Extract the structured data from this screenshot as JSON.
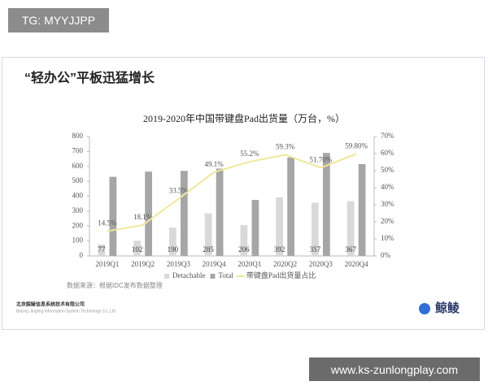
{
  "badge_top": "TG: MYYJJPP",
  "badge_bottom": "www.ks-zunlongplay.com",
  "heading": "“轻办公”平板迅猛增长",
  "source": "数据来源：根据IDC发布数据整理",
  "footer": {
    "company": "北京鲸鲮信息系统技术有限公司",
    "company_en": "Beijing Jingling Information System Technology Co.,Ltd",
    "logo": "鲸鲮"
  },
  "chart_data": {
    "type": "bar",
    "title": "2019-2020年中国带键盘Pad出货量（万台，%）",
    "categories": [
      "2019Q1",
      "2019Q2",
      "2019Q3",
      "2019Q4",
      "2020Q1",
      "2020Q2",
      "2020Q3",
      "2020Q4"
    ],
    "series": [
      {
        "name": "Detachable",
        "color": "#d9d9d9",
        "values": [
          77,
          102,
          190,
          285,
          206,
          392,
          357,
          367
        ]
      },
      {
        "name": "Total",
        "color": "#a6a6a6",
        "values": [
          530,
          565,
          570,
          585,
          375,
          660,
          690,
          615
        ]
      },
      {
        "name": "带键盘Pad出货量占比",
        "type": "line",
        "axis": "y2",
        "color": "#f2e79a",
        "values": [
          14.5,
          18.1,
          33.5,
          49.1,
          55.2,
          59.3,
          51.7,
          59.8
        ],
        "value_labels": [
          "14.5%",
          "18.1%",
          "33.5%",
          "49.1%",
          "55.2%",
          "59.3%",
          "51.70%",
          "59.80%"
        ]
      }
    ],
    "ylim": [
      0,
      800
    ],
    "yticks": [
      0,
      100,
      200,
      300,
      400,
      500,
      600,
      700,
      800
    ],
    "y2lim": [
      0,
      70
    ],
    "y2ticks": [
      {
        "value": 0,
        "label": "0%"
      },
      {
        "value": 10,
        "label": "10%"
      },
      {
        "value": 20,
        "label": "20%"
      },
      {
        "value": 30,
        "label": "30%"
      },
      {
        "value": 40,
        "label": "40%"
      },
      {
        "value": 50,
        "label": "50%"
      },
      {
        "value": 60,
        "label": "60%"
      },
      {
        "value": 70,
        "label": "70%"
      }
    ],
    "legend": "bottom"
  }
}
